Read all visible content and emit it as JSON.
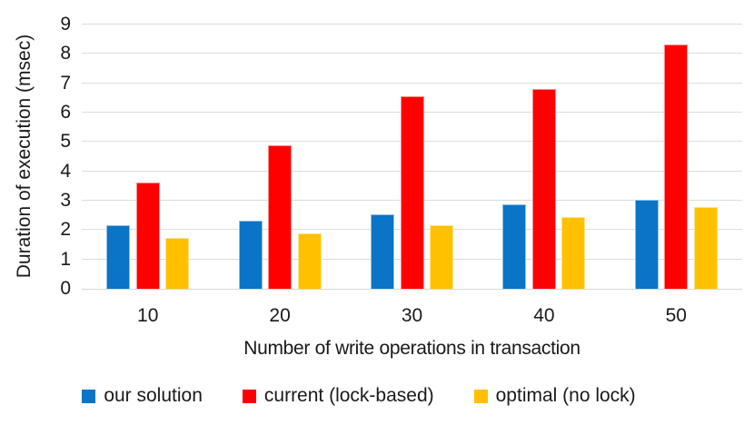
{
  "chart_data": {
    "type": "bar",
    "variant": "grouped-vertical",
    "title": "",
    "xlabel": "Number of write operations in transaction",
    "ylabel": "Duration of execution (msec)",
    "categories": [
      "10",
      "20",
      "30",
      "40",
      "50"
    ],
    "series": [
      {
        "name": "our solution",
        "color": "#0a74c6",
        "values": [
          2.17,
          2.33,
          2.53,
          2.88,
          3.02
        ]
      },
      {
        "name": "current (lock-based)",
        "color": "#fe0000",
        "values": [
          3.63,
          4.9,
          6.57,
          6.8,
          8.32
        ]
      },
      {
        "name": "optimal (no lock)",
        "color": "#ffc000",
        "values": [
          1.73,
          1.9,
          2.17,
          2.45,
          2.77
        ]
      }
    ],
    "ylim": [
      0,
      9
    ],
    "ytick_step": 1,
    "yticks": [
      "0",
      "1",
      "2",
      "3",
      "4",
      "5",
      "6",
      "7",
      "8",
      "9"
    ],
    "grid": "horizontal",
    "gridline_color": "#dcdcdc",
    "legend_position": "bottom",
    "background_color": "#ffffff",
    "text_color": "#1a1a1a"
  }
}
